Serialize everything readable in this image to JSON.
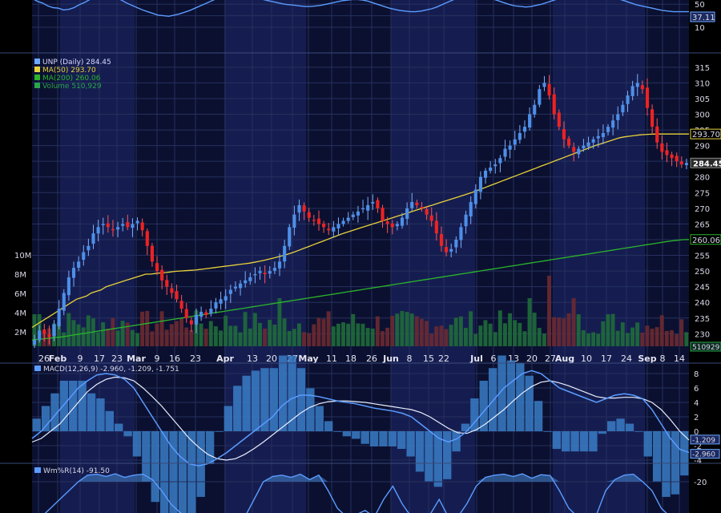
{
  "chart_data": [
    {
      "type": "line",
      "panel": "rsi",
      "y_ticks": [
        50,
        30,
        10
      ],
      "current_label": "37.11",
      "values": [
        60,
        55,
        52,
        47,
        44,
        43,
        40,
        41,
        44,
        49,
        53,
        58,
        62,
        66,
        68,
        66,
        62,
        57,
        52,
        48,
        44,
        40,
        37,
        34,
        31,
        30,
        29,
        31,
        33,
        36,
        39,
        43,
        47,
        51,
        55,
        59,
        62,
        64,
        66,
        67,
        66,
        64,
        62,
        60,
        58,
        56,
        54,
        52,
        50,
        49,
        48,
        47,
        46,
        46,
        47,
        48,
        50,
        52,
        54,
        56,
        57,
        58,
        58,
        57,
        55,
        52,
        49,
        46,
        43,
        41,
        39,
        38,
        37,
        37,
        38,
        40,
        42,
        45,
        49,
        53,
        57,
        61,
        64,
        66,
        67,
        66,
        64,
        61,
        58,
        55,
        52,
        49,
        47,
        46,
        45,
        46,
        48,
        50,
        53,
        56,
        59,
        62,
        65,
        68,
        70,
        72,
        73,
        72,
        70,
        67,
        64,
        61,
        58,
        55,
        52,
        49,
        47,
        45,
        43,
        41,
        39,
        38,
        37,
        37,
        37,
        37
      ]
    },
    {
      "type": "candlestick",
      "panel": "price",
      "legend": [
        {
          "name": "UNP (Daily)",
          "value": "284.45",
          "color": "#6fa8ff"
        },
        {
          "name": "MA(50)",
          "value": "293.70",
          "color": "#e8d23a"
        },
        {
          "name": "MA(200)",
          "value": "260.06",
          "color": "#2bb52b"
        },
        {
          "name": "Volume",
          "value": "510,929",
          "color": "#2aa54a"
        }
      ],
      "y_ticks": [
        315,
        310,
        305,
        300,
        295,
        290,
        285,
        280,
        275,
        270,
        265,
        260,
        255,
        250,
        245,
        240,
        235,
        230
      ],
      "ylim": [
        226,
        317
      ],
      "volume_ticks": [
        "10M",
        "8M",
        "6M",
        "4M",
        "2M"
      ],
      "x_tick_labels": [
        "26",
        "Feb",
        "9",
        "17",
        "23",
        "Mar",
        "9",
        "16",
        "23",
        "Apr",
        "13",
        "20",
        "27",
        "May",
        "11",
        "18",
        "26",
        "Jun",
        "8",
        "15",
        "22",
        "Jul",
        "6",
        "13",
        "20",
        "27",
        "Aug",
        "10",
        "17",
        "24",
        "Sep",
        "8",
        "14"
      ],
      "month_labels": [
        "Feb",
        "Mar",
        "Apr",
        "May",
        "Jun",
        "Jul",
        "Aug",
        "Sep"
      ],
      "last_price_label": "284.45",
      "ma50_label": "293.70",
      "ma200_label": "260.06",
      "volume_label": "510929",
      "close": [
        228,
        231,
        230,
        229,
        233,
        238,
        243,
        248,
        251,
        253,
        256,
        258,
        262,
        264,
        265,
        264,
        263,
        264,
        265,
        264,
        265,
        266,
        263,
        258,
        253,
        250,
        247,
        245,
        243,
        241,
        238,
        235,
        233,
        236,
        237,
        236,
        238,
        240,
        241,
        242,
        244,
        245,
        246,
        247,
        248,
        249,
        250,
        249,
        250,
        251,
        253,
        258,
        264,
        268,
        271,
        269,
        267,
        266,
        265,
        264,
        263,
        264,
        265,
        266,
        267,
        268,
        269,
        270,
        271,
        272,
        270,
        266,
        265,
        264,
        265,
        267,
        270,
        272,
        271,
        270,
        268,
        266,
        262,
        258,
        256,
        257,
        260,
        264,
        268,
        272,
        276,
        280,
        282,
        283,
        284,
        286,
        289,
        290,
        292,
        294,
        296,
        300,
        303,
        308,
        310,
        306,
        300,
        296,
        292,
        290,
        288,
        289,
        290,
        291,
        292,
        293,
        294,
        296,
        298,
        300,
        303,
        306,
        309,
        310,
        308,
        302,
        296,
        291,
        288,
        287,
        286,
        285,
        284,
        284.45
      ],
      "ma50": [
        232,
        233,
        234,
        235,
        236,
        237,
        238,
        239,
        240,
        241,
        241.5,
        242,
        243,
        243.5,
        244,
        245,
        245.5,
        246,
        246.5,
        247,
        247.5,
        248,
        248.5,
        249,
        249,
        249.2,
        249.4,
        249.5,
        249.7,
        249.9,
        250,
        250.1,
        250.2,
        250.3,
        250.5,
        250.7,
        250.9,
        251.1,
        251.3,
        251.5,
        251.7,
        251.9,
        252.1,
        252.3,
        252.5,
        252.8,
        253.1,
        253.4,
        253.8,
        254.2,
        254.6,
        255,
        255.5,
        256,
        256.6,
        257.2,
        257.8,
        258.4,
        259,
        259.6,
        260.2,
        260.8,
        261.4,
        262,
        262.5,
        263,
        263.5,
        264,
        264.5,
        265,
        265.5,
        266,
        266.5,
        267,
        267.5,
        268,
        268.5,
        269,
        269.5,
        270,
        270.5,
        271,
        271.5,
        272,
        272.5,
        273,
        273.5,
        274,
        274.5,
        275,
        275.6,
        276.2,
        276.8,
        277.4,
        278,
        278.6,
        279.2,
        279.8,
        280.4,
        281,
        281.6,
        282.2,
        282.8,
        283.4,
        284,
        284.6,
        285.2,
        285.8,
        286.4,
        287,
        287.6,
        288.2,
        288.8,
        289.4,
        290,
        290.5,
        291,
        291.5,
        292,
        292.5,
        292.8,
        293,
        293.2,
        293.4,
        293.5,
        293.6,
        293.65,
        293.7,
        293.7,
        293.7,
        293.7,
        293.7,
        293.7,
        293.7
      ],
      "ma200": [
        228,
        228.2,
        228.4,
        228.6,
        228.8,
        229,
        229.3,
        229.6,
        229.9,
        230.2,
        230.5,
        230.8,
        231.1,
        231.4,
        231.7,
        232,
        232.3,
        232.6,
        232.9,
        233.2,
        233.5,
        233.8,
        234.1,
        234.4,
        234.7,
        235,
        235.3,
        235.6,
        235.9,
        236.2,
        236.5,
        236.8,
        237.1,
        237.4,
        237.7,
        238,
        238.3,
        238.6,
        238.9,
        239.2,
        239.5,
        239.8,
        240.1,
        240.4,
        240.7,
        241,
        241.3,
        241.6,
        241.9,
        242.2,
        242.5,
        242.8,
        243.1,
        243.4,
        243.7,
        244,
        244.3,
        244.6,
        244.9,
        245.2,
        245.5,
        245.8,
        246.1,
        246.4,
        246.7,
        247,
        247.3,
        247.6,
        247.9,
        248.2,
        248.5,
        248.8,
        249.1,
        249.4,
        249.7,
        250,
        250.3,
        250.6,
        250.9,
        251.2,
        251.5,
        251.8,
        252.1,
        252.4,
        252.7,
        253,
        253.3,
        253.6,
        253.9,
        254.2,
        254.5,
        254.8,
        255.1,
        255.4,
        255.7,
        256,
        256.3,
        256.6,
        256.9,
        257.2,
        257.5,
        257.8,
        258.1,
        258.4,
        258.7,
        259,
        259.3,
        259.6,
        259.8,
        260,
        260.06
      ]
    },
    {
      "type": "bar",
      "panel": "macd",
      "title": "MACD(12,26,9) -2.960, -1.209, -1.751",
      "y_ticks": [
        "8",
        "6",
        "4",
        "2",
        "0",
        "-2",
        "-4"
      ],
      "labels": [
        "-1.209",
        "-2.960"
      ],
      "macd": [
        -1,
        0,
        1.5,
        3,
        4.5,
        6,
        7,
        7.8,
        8,
        7.8,
        7.2,
        6,
        4,
        2,
        0,
        -2,
        -3.5,
        -4.5,
        -4.8,
        -4.5,
        -3.8,
        -3,
        -2,
        -1,
        0,
        1,
        2,
        3.5,
        4.5,
        5,
        5,
        4.8,
        4.5,
        4.2,
        4,
        3.8,
        3.5,
        3.2,
        3,
        2.8,
        2.5,
        2,
        1,
        0,
        -1,
        -1.5,
        -1,
        0,
        1.5,
        3,
        4.5,
        6,
        7,
        8,
        8.4,
        8,
        7,
        6,
        5.5,
        5,
        4.5,
        4,
        4.5,
        5,
        5.2,
        5,
        4.5,
        3,
        1,
        -1,
        -2.5,
        -2.96
      ],
      "signal": [
        -1.5,
        -1,
        0,
        1,
        2.5,
        4,
        5.5,
        6.5,
        7.2,
        7.5,
        7.4,
        7,
        6,
        4.8,
        3.5,
        2,
        0.5,
        -1,
        -2.2,
        -3.2,
        -3.8,
        -4,
        -3.8,
        -3.2,
        -2.4,
        -1.5,
        -0.5,
        0.5,
        1.5,
        2.5,
        3.3,
        3.8,
        4.1,
        4.2,
        4.2,
        4.1,
        4,
        3.8,
        3.6,
        3.4,
        3.2,
        3,
        2.6,
        2,
        1.2,
        0.4,
        -0.2,
        -0.3,
        0.2,
        1,
        2,
        3,
        4.2,
        5.3,
        6.2,
        6.8,
        7,
        6.7,
        6.3,
        5.8,
        5.3,
        4.8,
        4.6,
        4.6,
        4.7,
        4.7,
        4.5,
        4,
        3,
        1.6,
        0,
        -1.209
      ]
    },
    {
      "type": "area",
      "panel": "williams_r",
      "title": "Wm%R(14) -91.50",
      "y_ticks": [
        "-20"
      ],
      "values": [
        -100,
        -100,
        -80,
        -60,
        -40,
        -20,
        -5,
        -3,
        -8,
        -2,
        -10,
        -5,
        -3,
        -15,
        -40,
        -70,
        -90,
        -100,
        -100,
        -100,
        -100,
        -95,
        -100,
        -100,
        -60,
        -20,
        -8,
        -5,
        -10,
        -3,
        -15,
        -5,
        -40,
        -80,
        -100,
        -95,
        -85,
        -100,
        -60,
        -30,
        -70,
        -100,
        -100,
        -95,
        -60,
        -100,
        -100,
        -70,
        -30,
        -10,
        -5,
        -3,
        -8,
        -2,
        -12,
        -4,
        -6,
        -40,
        -80,
        -100,
        -100,
        -95,
        -40,
        -15,
        -5,
        -3,
        -20,
        -40,
        -80,
        -100,
        -100,
        -91.5
      ]
    }
  ]
}
